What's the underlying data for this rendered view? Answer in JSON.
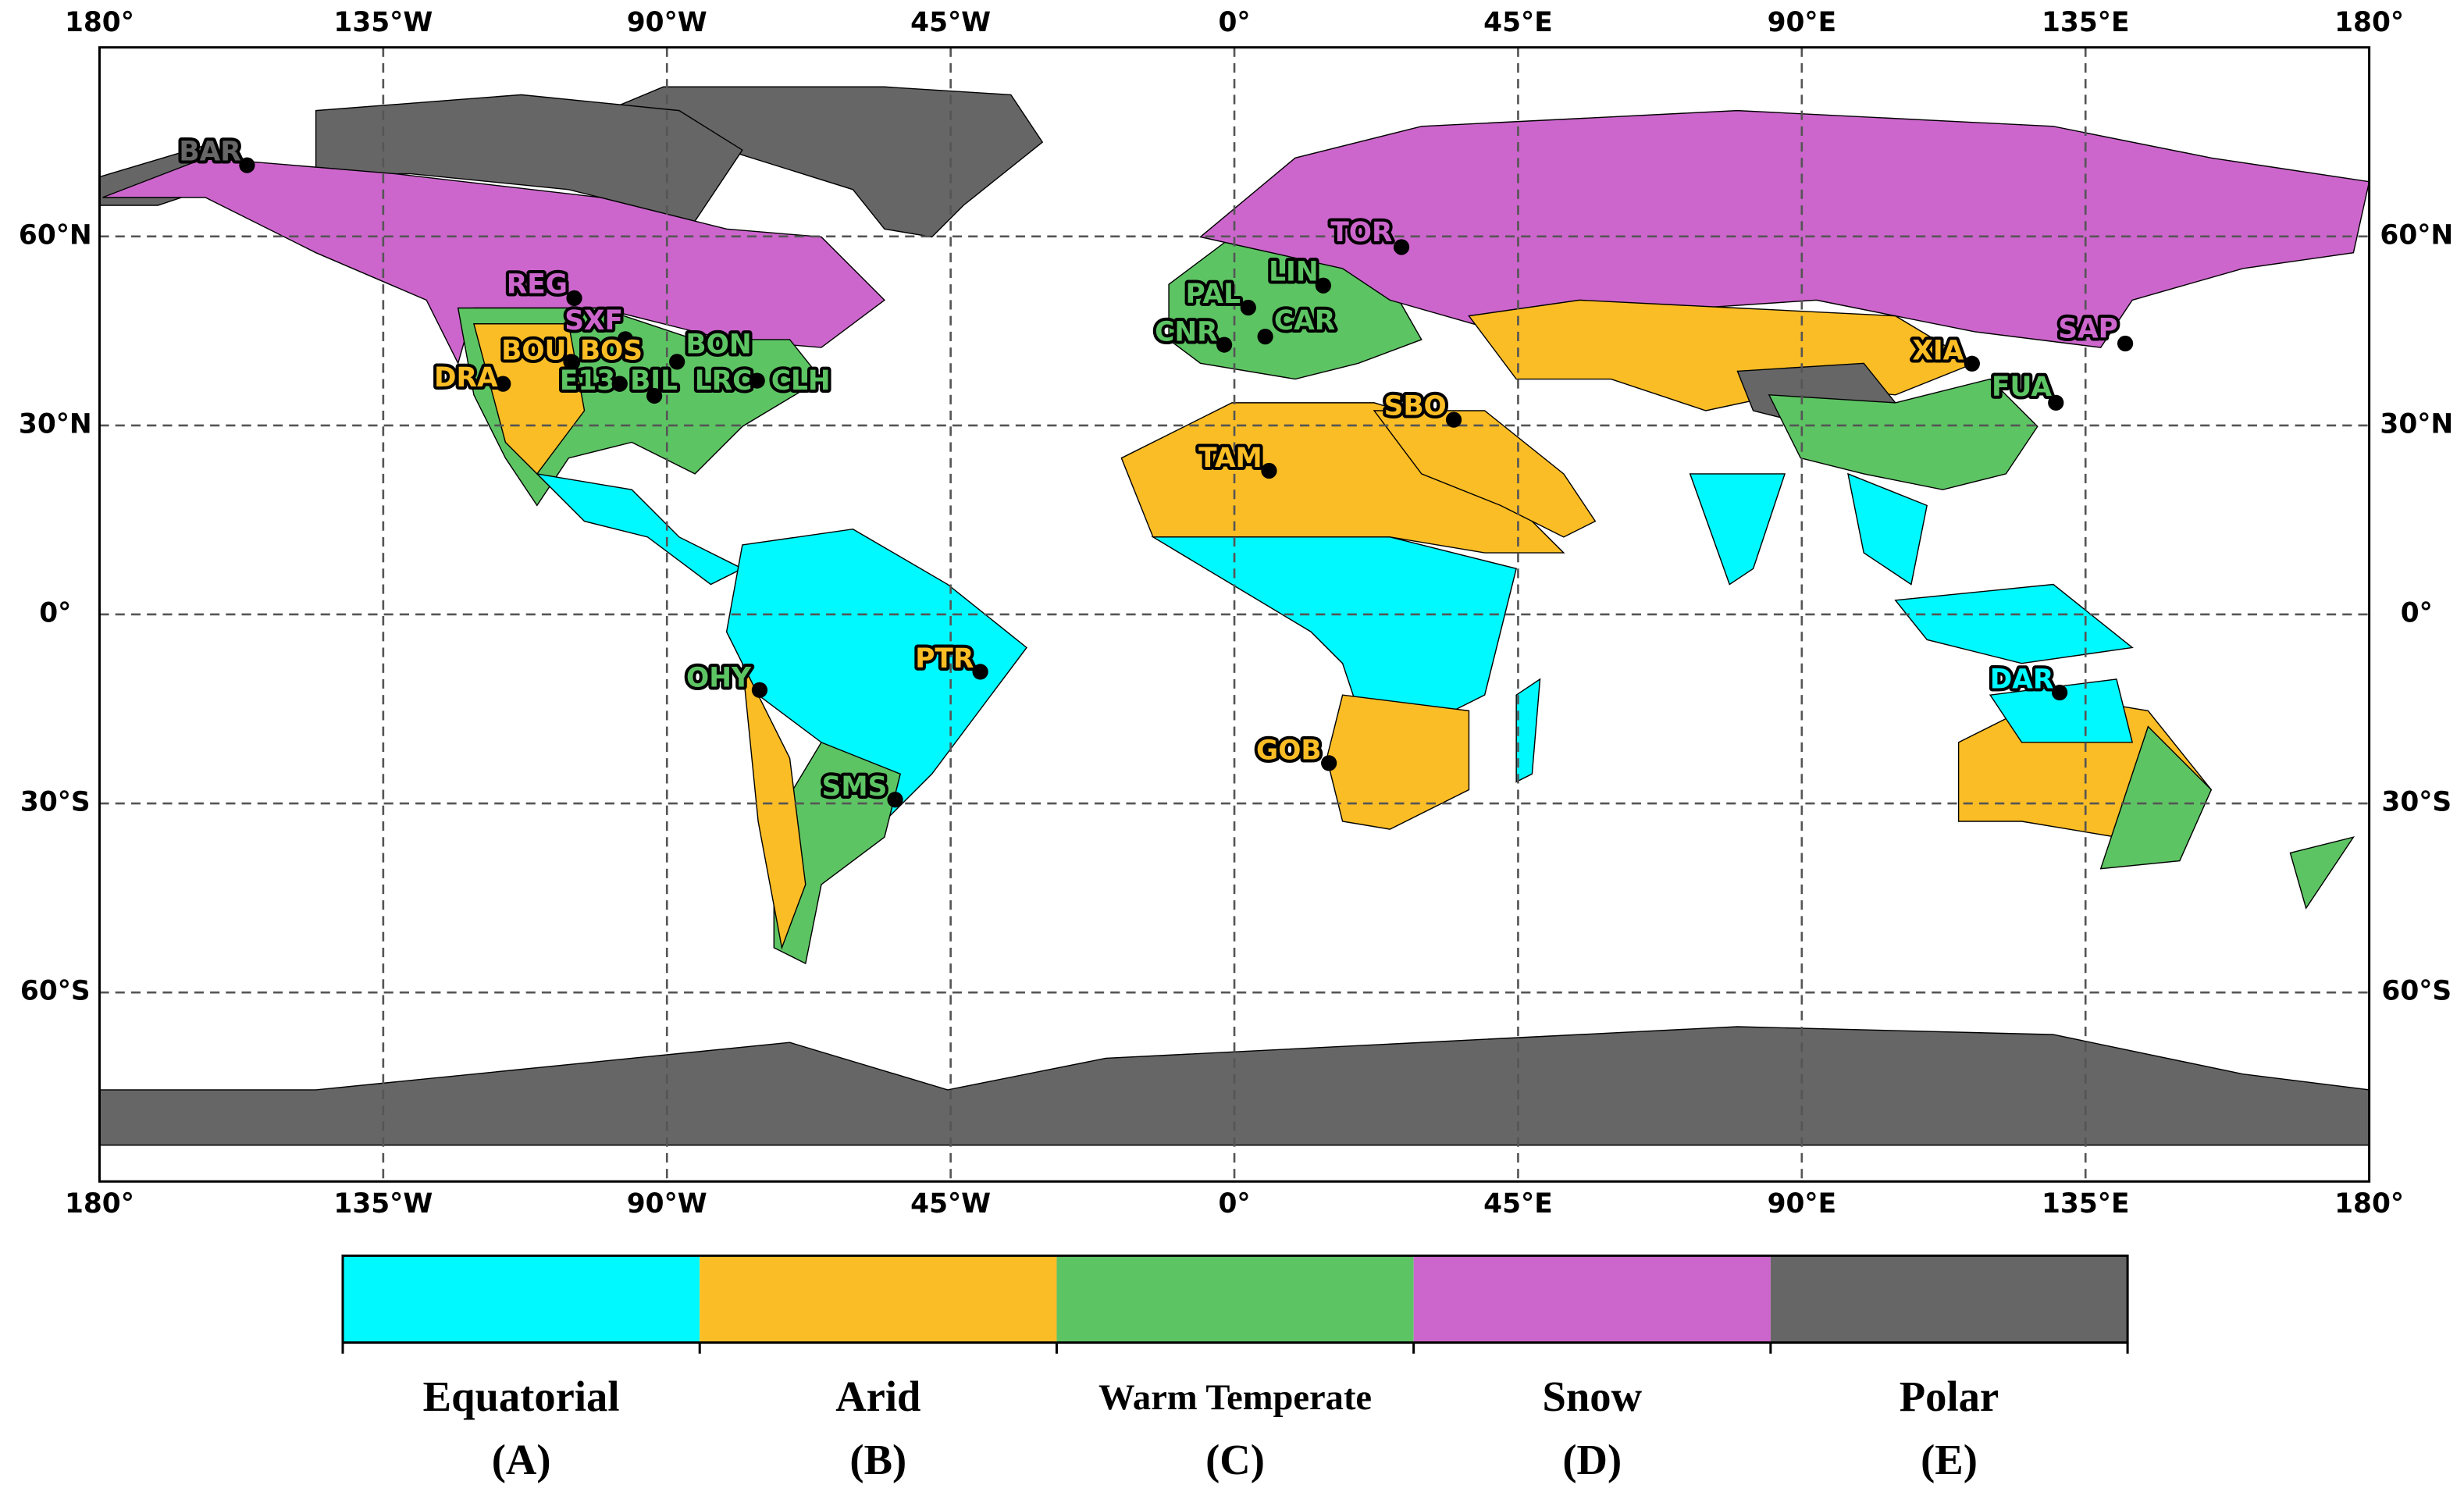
{
  "map": {
    "type": "map",
    "xlim": [
      -180,
      180
    ],
    "ylim": [
      -90,
      90
    ],
    "grid": true,
    "xticks": [
      {
        "value": -180,
        "label": "180°"
      },
      {
        "value": -135,
        "label": "135°W"
      },
      {
        "value": -90,
        "label": "90°W"
      },
      {
        "value": -45,
        "label": "45°W"
      },
      {
        "value": 0,
        "label": "0°"
      },
      {
        "value": 45,
        "label": "45°E"
      },
      {
        "value": 90,
        "label": "90°E"
      },
      {
        "value": 135,
        "label": "135°E"
      },
      {
        "value": 180,
        "label": "180°"
      }
    ],
    "yticks": [
      {
        "value": -60,
        "label": "60°S"
      },
      {
        "value": -30,
        "label": "30°S"
      },
      {
        "value": 0,
        "label": "0°"
      },
      {
        "value": 30,
        "label": "30°N"
      },
      {
        "value": 60,
        "label": "60°N"
      }
    ],
    "stations": [
      {
        "name": "BAR",
        "lon": -156.6,
        "lat": 71.3,
        "color": "#666666"
      },
      {
        "name": "REG",
        "lon": -104.7,
        "lat": 50.2,
        "color": "#cc66cc"
      },
      {
        "name": "SXF",
        "lon": -96.6,
        "lat": 43.7,
        "color": "#cc66cc"
      },
      {
        "name": "BOU",
        "lon": -105.0,
        "lat": 40.0,
        "color": "#fbbd25"
      },
      {
        "name": "BOS",
        "lon": -105.2,
        "lat": 40.1,
        "color": "#fbbd25"
      },
      {
        "name": "BON",
        "lon": -88.4,
        "lat": 40.1,
        "color": "#5dc463"
      },
      {
        "name": "DRA",
        "lon": -116.0,
        "lat": 36.6,
        "color": "#fbbd25"
      },
      {
        "name": "E13",
        "lon": -97.5,
        "lat": 36.6,
        "color": "#5dc463"
      },
      {
        "name": "BIL",
        "lon": -97.5,
        "lat": 36.6,
        "color": "#5dc463"
      },
      {
        "name": "LRC",
        "lon": -92.0,
        "lat": 34.7,
        "color": "#5dc463"
      },
      {
        "name": "CLH",
        "lon": -75.7,
        "lat": 37.1,
        "color": "#5dc463"
      },
      {
        "name": "TOR",
        "lon": 26.5,
        "lat": 58.3,
        "color": "#cc66cc"
      },
      {
        "name": "LIN",
        "lon": 14.1,
        "lat": 52.2,
        "color": "#5dc463"
      },
      {
        "name": "PAL",
        "lon": 2.2,
        "lat": 48.7,
        "color": "#5dc463"
      },
      {
        "name": "CNR",
        "lon": -1.6,
        "lat": 42.8,
        "color": "#5dc463"
      },
      {
        "name": "CAR",
        "lon": 4.9,
        "lat": 44.1,
        "color": "#5dc463"
      },
      {
        "name": "SBO",
        "lon": 34.8,
        "lat": 30.9,
        "color": "#fbbd25"
      },
      {
        "name": "TAM",
        "lon": 5.5,
        "lat": 22.8,
        "color": "#fbbd25"
      },
      {
        "name": "PTR",
        "lon": -40.3,
        "lat": -9.1,
        "color": "#fbbd25"
      },
      {
        "name": "OHY",
        "lon": -75.3,
        "lat": -12.0,
        "color": "#5dc463"
      },
      {
        "name": "GOB",
        "lon": 15.0,
        "lat": -23.6,
        "color": "#fbbd25"
      },
      {
        "name": "SMS",
        "lon": -53.8,
        "lat": -29.4,
        "color": "#5dc463"
      },
      {
        "name": "XIA",
        "lon": 117.0,
        "lat": 39.8,
        "color": "#fbbd25"
      },
      {
        "name": "SAP",
        "lon": 141.3,
        "lat": 43.0,
        "color": "#cc66cc"
      },
      {
        "name": "FUA",
        "lon": 130.3,
        "lat": 33.6,
        "color": "#5dc463"
      },
      {
        "name": "DAR",
        "lon": 130.9,
        "lat": -12.4,
        "color": "#00f8ff"
      }
    ],
    "legend": [
      {
        "name": "Equatorial",
        "code": "(A)",
        "color": "#00f8ff"
      },
      {
        "name": "Arid",
        "code": "(B)",
        "color": "#fbbd25"
      },
      {
        "name": "Warm Temperate",
        "code": "(C)",
        "color": "#5dc463"
      },
      {
        "name": "Snow",
        "code": "(D)",
        "color": "#cc66cc"
      },
      {
        "name": "Polar",
        "code": "(E)",
        "color": "#666666"
      }
    ]
  }
}
